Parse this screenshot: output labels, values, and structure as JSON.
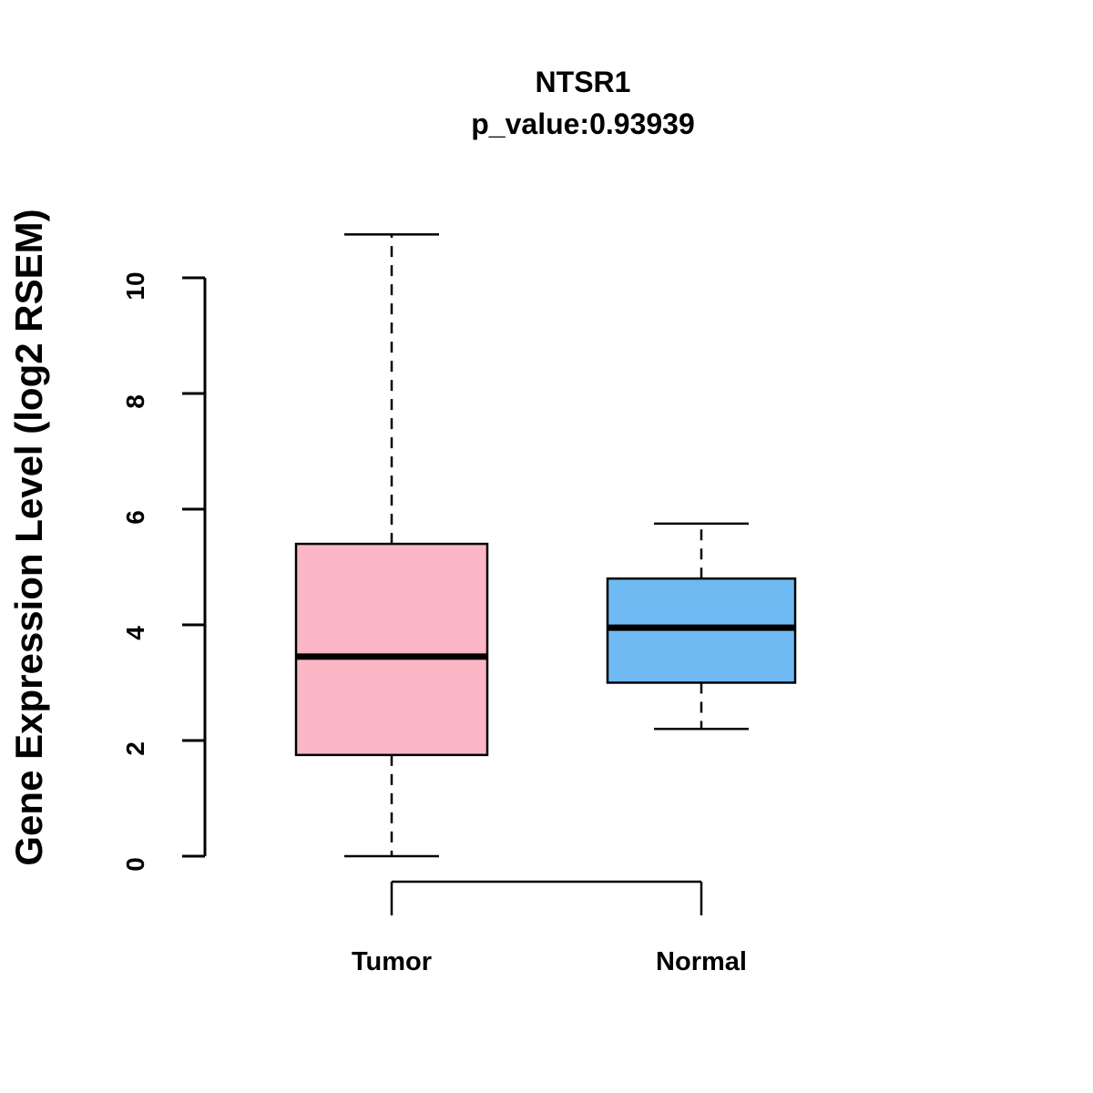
{
  "title": "NTSR1",
  "subtitle": "p_value:0.93939",
  "y_axis_title": "Gene Expression Level (log2 RSEM)",
  "chart_data": {
    "type": "boxplot",
    "title": "NTSR1",
    "subtitle": "p_value:0.93939",
    "ylabel": "Gene Expression Level (log2 RSEM)",
    "xlabel": "",
    "ylim": [
      0,
      10
    ],
    "yticks": [
      "0",
      "2",
      "4",
      "6",
      "8",
      "10"
    ],
    "ytick_values": [
      0,
      2,
      4,
      6,
      8,
      10
    ],
    "grid": false,
    "legend": "none",
    "groups": [
      {
        "label": "Tumor",
        "color": "#FBB7C5",
        "min": 0.0,
        "q1": 1.75,
        "median": 3.45,
        "q3": 5.4,
        "max": 10.75
      },
      {
        "label": "Normal",
        "color": "#6FBAF3",
        "min": 2.2,
        "q1": 3.0,
        "median": 3.95,
        "q3": 4.8,
        "max": 5.75
      }
    ]
  }
}
